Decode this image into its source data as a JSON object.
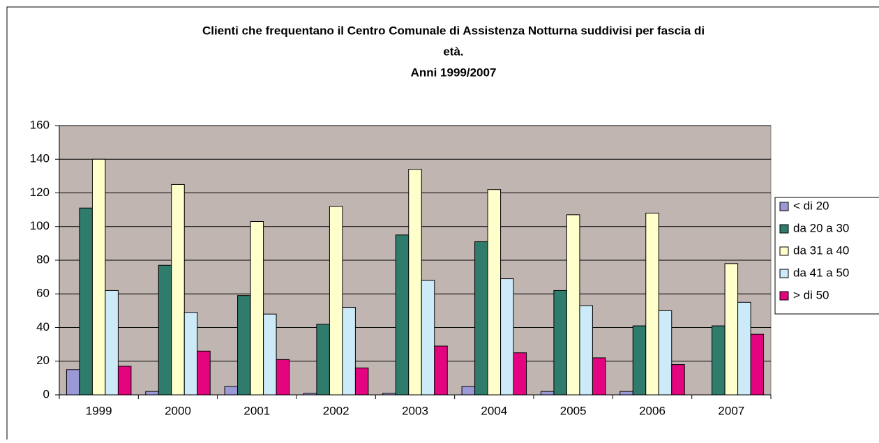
{
  "chart_data": {
    "type": "bar",
    "title": [
      "Clienti che frequentano il Centro Comunale di Assistenza Notturna suddivisi per fascia di",
      "età.",
      "Anni 1999/2007"
    ],
    "categories": [
      "1999",
      "2000",
      "2001",
      "2002",
      "2003",
      "2004",
      "2005",
      "2006",
      "2007"
    ],
    "series": [
      {
        "name": "< di 20",
        "color": "#9c9ad6",
        "values": [
          15,
          2,
          5,
          1,
          1,
          5,
          2,
          2,
          0
        ]
      },
      {
        "name": "da 20 a 30",
        "color": "#2f7b6c",
        "values": [
          111,
          77,
          59,
          42,
          95,
          91,
          62,
          41,
          41
        ]
      },
      {
        "name": "da 31 a 40",
        "color": "#ffffcc",
        "values": [
          140,
          125,
          103,
          112,
          134,
          122,
          107,
          108,
          78
        ]
      },
      {
        "name": "da 41 a 50",
        "color": "#cdeaf8",
        "values": [
          62,
          49,
          48,
          52,
          68,
          69,
          53,
          50,
          55
        ]
      },
      {
        "name": "> di 50",
        "color": "#e4047f",
        "values": [
          17,
          26,
          21,
          16,
          29,
          25,
          22,
          18,
          36
        ]
      }
    ],
    "ylim": [
      0,
      160
    ],
    "yticks": [
      0,
      20,
      40,
      60,
      80,
      100,
      120,
      140,
      160
    ],
    "grid": true,
    "plot_background": "#c1b5b2",
    "legend": "right"
  }
}
